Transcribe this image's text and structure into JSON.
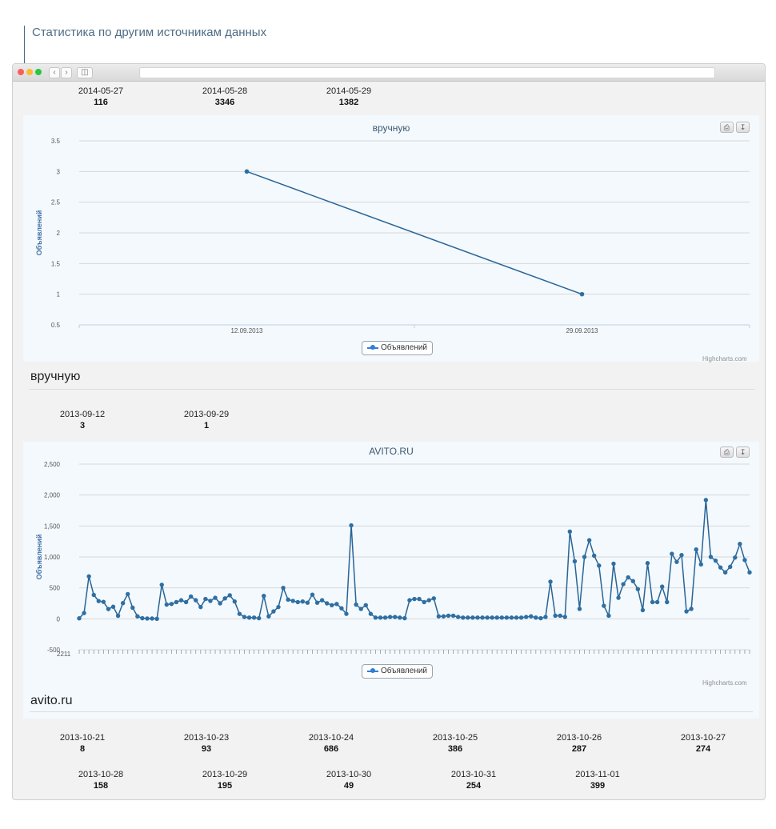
{
  "heading": "Статистика по другим источникам данных",
  "top_stats": [
    {
      "date": "2014-05-27",
      "count": "116"
    },
    {
      "date": "2014-05-28",
      "count": "3346"
    },
    {
      "date": "2014-05-29",
      "count": "1382"
    }
  ],
  "manual_section": {
    "label": "вручную",
    "stats": [
      {
        "date": "2013-09-12",
        "count": "3"
      },
      {
        "date": "2013-09-29",
        "count": "1"
      }
    ]
  },
  "avito_section": {
    "label": "avito.ru",
    "stats_row1": [
      {
        "date": "2013-10-21",
        "count": "8"
      },
      {
        "date": "2013-10-23",
        "count": "93"
      },
      {
        "date": "2013-10-24",
        "count": "686"
      },
      {
        "date": "2013-10-25",
        "count": "386"
      },
      {
        "date": "2013-10-26",
        "count": "287"
      },
      {
        "date": "2013-10-27",
        "count": "274"
      }
    ],
    "stats_row2": [
      {
        "date": "2013-10-28",
        "count": "158"
      },
      {
        "date": "2013-10-29",
        "count": "195"
      },
      {
        "date": "2013-10-30",
        "count": "49"
      },
      {
        "date": "2013-10-31",
        "count": "254"
      },
      {
        "date": "2013-11-01",
        "count": "399"
      }
    ]
  },
  "toolbar": {
    "print_icon": "print-icon",
    "export_icon": "download-icon"
  },
  "credits": "Highcharts.com",
  "colors": {
    "series": "#2f7ed8",
    "line": "#2a6496",
    "marker": "#2f6fa3",
    "grid": "#d8d8d8",
    "panel": "#f3f9fd"
  },
  "chart_data": [
    {
      "type": "line",
      "title": "вручную",
      "ylabel": "Объявлений",
      "x": [
        "12.09.2013",
        "29.09.2013"
      ],
      "yticks": [
        "0.5",
        "1",
        "1.5",
        "2",
        "2.5",
        "3",
        "3.5"
      ],
      "ylim": [
        0.5,
        3.5
      ],
      "series": [
        {
          "name": "Объявлений",
          "values": [
            3,
            1
          ]
        }
      ],
      "legend": "bottom-center",
      "grid": true
    },
    {
      "type": "line",
      "title": "AVITO.RU",
      "ylabel": "Объявлений",
      "yticks": [
        "-500",
        "0",
        "500",
        "1,000",
        "1,500",
        "2,000",
        "2,500"
      ],
      "ylim": [
        -500,
        2500
      ],
      "xlabel_note": "2211",
      "series": [
        {
          "name": "Объявлений",
          "values": [
            8,
            93,
            686,
            386,
            287,
            274,
            158,
            195,
            49,
            254,
            399,
            180,
            40,
            10,
            5,
            5,
            0,
            550,
            230,
            240,
            270,
            300,
            270,
            360,
            300,
            190,
            320,
            290,
            340,
            250,
            330,
            380,
            280,
            80,
            30,
            20,
            20,
            10,
            370,
            40,
            120,
            190,
            500,
            310,
            290,
            270,
            280,
            260,
            390,
            260,
            300,
            250,
            220,
            240,
            170,
            80,
            1510,
            230,
            160,
            220,
            80,
            20,
            20,
            20,
            30,
            30,
            20,
            10,
            300,
            320,
            320,
            270,
            300,
            330,
            40,
            40,
            50,
            50,
            30,
            20,
            20,
            20,
            20,
            20,
            20,
            20,
            20,
            20,
            20,
            20,
            20,
            20,
            30,
            40,
            20,
            10,
            30,
            600,
            50,
            50,
            30,
            1410,
            930,
            160,
            1000,
            1270,
            1020,
            860,
            210,
            50,
            890,
            340,
            560,
            670,
            610,
            480,
            140,
            900,
            270,
            270,
            520,
            270,
            1050,
            920,
            1030,
            120,
            160,
            1120,
            880,
            1920,
            1000,
            940,
            830,
            750,
            840,
            990,
            1210,
            950,
            750
          ]
        }
      ],
      "legend": "bottom-center",
      "grid": true
    }
  ]
}
